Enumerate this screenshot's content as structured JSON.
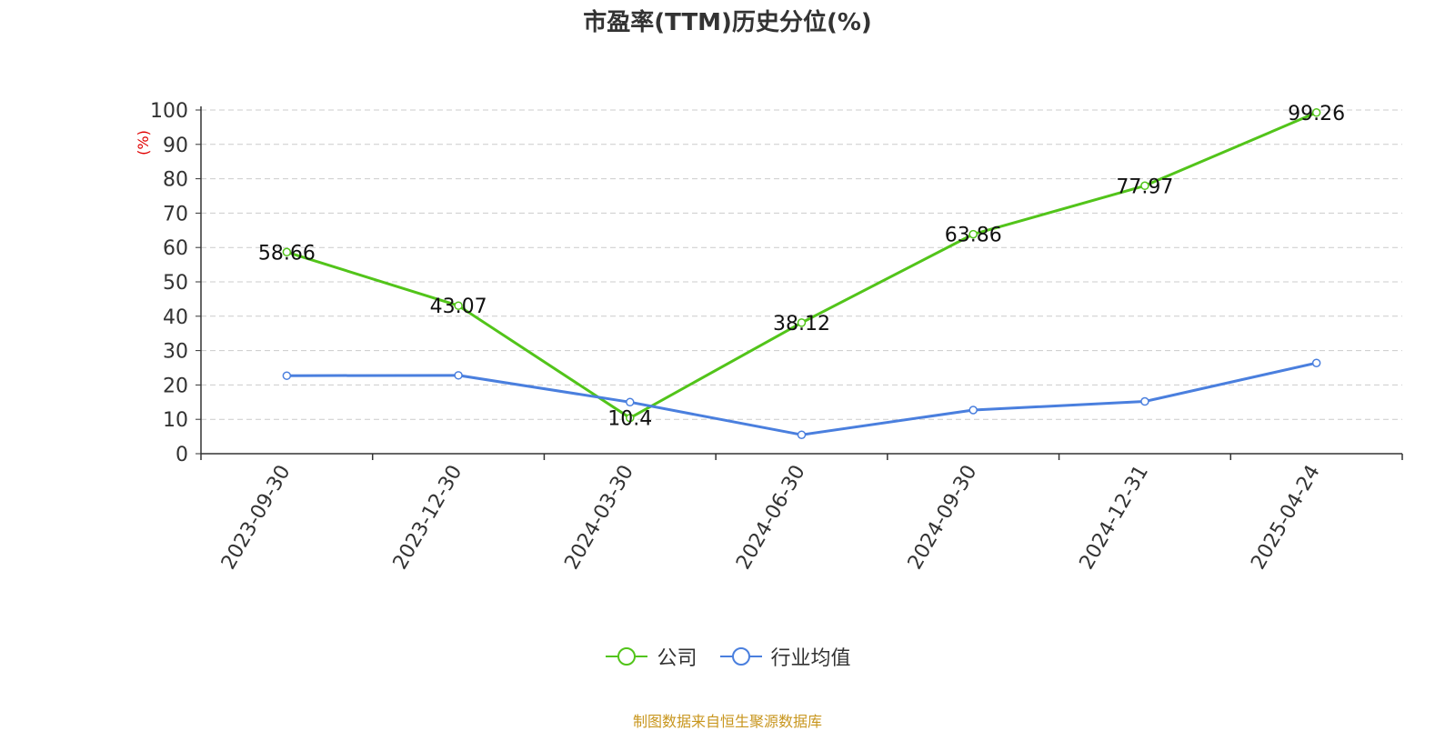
{
  "chart_data": {
    "type": "line",
    "title": "市盈率(TTM)历史分位(%)",
    "ylabel": "(%)",
    "ylim": [
      0,
      100
    ],
    "yticks": [
      0,
      10,
      20,
      30,
      40,
      50,
      60,
      70,
      80,
      90,
      100
    ],
    "categories": [
      "2023-09-30",
      "2023-12-30",
      "2024-03-30",
      "2024-06-30",
      "2024-09-30",
      "2024-12-31",
      "2025-04-24"
    ],
    "series": [
      {
        "name": "公司",
        "color": "#52c41a",
        "values": [
          58.66,
          43.07,
          10.4,
          38.12,
          63.86,
          77.97,
          99.26
        ],
        "labels": [
          "58.66",
          "43.07",
          "10.4",
          "38.12",
          "63.86",
          "77.97",
          "99.26"
        ]
      },
      {
        "name": "行业均值",
        "color": "#4a7fde",
        "values": [
          22.7,
          22.8,
          15.0,
          5.5,
          12.7,
          15.2,
          26.4
        ]
      }
    ],
    "grid": true,
    "legend": "bottom",
    "source": "制图数据来自恒生聚源数据库"
  }
}
